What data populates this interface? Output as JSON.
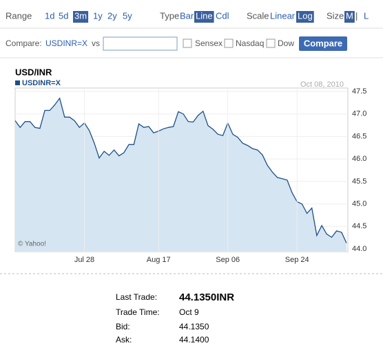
{
  "toolbar": {
    "range": {
      "label": "Range",
      "options": [
        "1d",
        "5d",
        "3m",
        "1y",
        "2y",
        "5y"
      ],
      "selected": 2
    },
    "type": {
      "label": "Type",
      "options": [
        "Bar",
        "Line",
        "Cdl"
      ],
      "selected": 1
    },
    "scale": {
      "label": "Scale",
      "options": [
        "Linear",
        "Log"
      ],
      "selected": 1
    },
    "size": {
      "label": "Size",
      "options": [
        "M",
        "L"
      ],
      "separator": "|",
      "selected": 0
    }
  },
  "compare": {
    "label": "Compare:",
    "symbol": "USDINR=X",
    "vs": "vs",
    "options": [
      "Sensex",
      "Nasdaq",
      "Dow"
    ],
    "button": "Compare"
  },
  "chart_data": {
    "type": "line",
    "title": "USD/INR",
    "date": "Oct 08, 2010",
    "credit": "© Yahoo!",
    "categories": [
      null,
      null,
      null,
      null,
      null,
      null,
      null,
      null,
      null,
      null,
      null,
      null,
      null,
      null,
      "Jul 28",
      null,
      null,
      null,
      null,
      null,
      null,
      null,
      null,
      null,
      null,
      null,
      null,
      null,
      null,
      "Aug 17",
      null,
      null,
      null,
      null,
      null,
      null,
      null,
      null,
      null,
      null,
      null,
      null,
      null,
      "Sep 06",
      null,
      null,
      null,
      null,
      null,
      null,
      null,
      null,
      null,
      null,
      null,
      null,
      null,
      "Sep 24",
      null,
      null,
      null,
      null,
      null,
      null,
      null,
      null,
      null,
      null
    ],
    "series": [
      {
        "name": "USDINR=X",
        "color": "#1d4e89",
        "fill": "#d5e5f1",
        "values": [
          46.85,
          46.7,
          46.83,
          46.83,
          46.7,
          46.68,
          47.08,
          47.08,
          47.2,
          47.35,
          46.93,
          46.93,
          46.85,
          46.7,
          46.8,
          46.63,
          46.35,
          46.02,
          46.17,
          46.08,
          46.2,
          46.07,
          46.14,
          46.32,
          46.32,
          46.78,
          46.7,
          46.72,
          46.58,
          46.62,
          46.67,
          46.7,
          46.72,
          47.05,
          47.0,
          46.83,
          46.82,
          46.97,
          47.06,
          46.74,
          46.66,
          46.55,
          46.52,
          46.8,
          46.55,
          46.48,
          46.35,
          46.3,
          46.23,
          46.2,
          46.09,
          45.86,
          45.71,
          45.59,
          45.56,
          45.53,
          45.25,
          45.05,
          45.0,
          44.79,
          44.91,
          44.3,
          44.52,
          44.33,
          44.26,
          44.4,
          44.37,
          44.13
        ]
      }
    ],
    "ylim": [
      44,
      47.5
    ],
    "yticks": [
      {
        "value": 44,
        "label": "44.0"
      },
      44.5,
      {
        "value": 45,
        "label": "45.0"
      },
      45.5,
      {
        "value": 46,
        "label": "46.0"
      },
      46.5,
      {
        "value": 47,
        "label": "47.0"
      },
      47.5
    ],
    "grid": true
  },
  "quote": {
    "rows": [
      [
        "Last Trade:",
        "44.1350INR"
      ],
      [
        "Trade Time:",
        "Oct 9"
      ],
      [
        "Bid:",
        "44.1350"
      ],
      [
        "Ask:",
        "44.1400"
      ]
    ]
  }
}
